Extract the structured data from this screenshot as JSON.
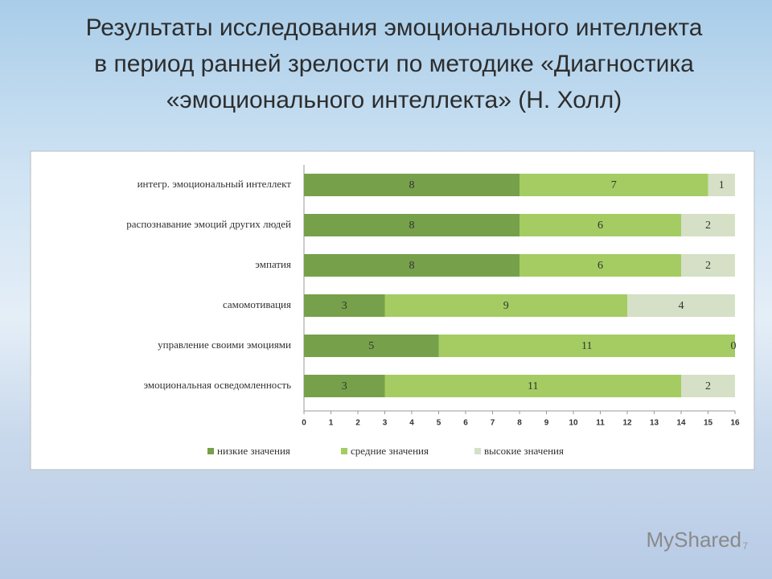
{
  "chart_data": {
    "type": "stacked-barh",
    "title": "Результаты исследования эмоционального интеллекта\nв период ранней зрелости  по методике  «Диагностика\n«эмоционального интеллекта» (Н. Холл)",
    "categories": [
      "интегр.  эмоциональный интеллект",
      "распознавание эмоций других людей",
      "эмпатия",
      "самомотивация",
      "управление своими эмоциями",
      "эмоциональная осведомленность"
    ],
    "series": [
      {
        "name": "низкие значения",
        "color": "#76a04a",
        "values": [
          8,
          8,
          8,
          3,
          5,
          3
        ]
      },
      {
        "name": "средние значения",
        "color": "#a4cc62",
        "values": [
          7,
          6,
          6,
          9,
          11,
          11
        ]
      },
      {
        "name": "высокие значения",
        "color": "#d5e0c6",
        "values": [
          1,
          2,
          2,
          4,
          0,
          2
        ]
      }
    ],
    "xlim": [
      0,
      16
    ],
    "xticks": [
      0,
      1,
      2,
      3,
      4,
      5,
      6,
      7,
      8,
      9,
      10,
      11,
      12,
      13,
      14,
      15,
      16
    ],
    "legend": "bottom"
  },
  "watermark": "MyShared",
  "slide_number": "7"
}
